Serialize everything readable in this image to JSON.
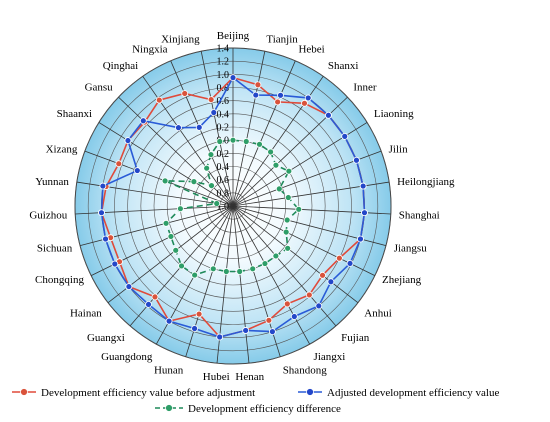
{
  "chart_data": {
    "type": "radar",
    "categories": [
      "Beijing",
      "Tianjin",
      "Hebei",
      "Shanxi",
      "Inner",
      "Liaoning",
      "Jilin",
      "Heilongjiang",
      "Shanghai",
      "Jiangsu",
      "Zhejiang",
      "Anhui",
      "Fujian",
      "Jiangxi",
      "Shandong",
      "Henan",
      "Hubei",
      "Hunan",
      "Guangdong",
      "Guangxi",
      "Hainan",
      "Chongqing",
      "Sichuan",
      "Guizhou",
      "Yunnan",
      "Xizang",
      "Shaanxi",
      "Gansu",
      "Qinghai",
      "Ningxia",
      "Xinjiang"
    ],
    "ticks": [
      "1.4",
      "1.2",
      "1.0",
      "0.8",
      "0.6",
      "0.4",
      "0.2",
      "0.0",
      "0.2",
      "0.4",
      "0.6",
      "0.8",
      "1.0"
    ],
    "rlim": [
      -1.0,
      1.4
    ],
    "grid": true,
    "legend_position": "bottom",
    "series": [
      {
        "name": "Development efficiency value before adjustment",
        "color": "#e04a3a",
        "marker_color": "#d9533b",
        "style": "solid",
        "values": [
          0.95,
          0.88,
          0.72,
          0.9,
          1.0,
          1.0,
          1.0,
          1.0,
          1.0,
          1.0,
          0.8,
          0.72,
          0.78,
          0.7,
          0.82,
          0.9,
          1.0,
          0.72,
          1.0,
          0.82,
          1.0,
          0.92,
          0.92,
          1.0,
          0.95,
          0.85,
          0.88,
          0.85,
          0.96,
          0.86,
          0.65
        ]
      },
      {
        "name": "Adjusted development efficiency value",
        "color": "#2a5bd7",
        "marker_color": "#2347c9",
        "style": "solid",
        "values": [
          0.95,
          0.72,
          0.83,
          1.0,
          1.0,
          1.0,
          1.0,
          1.0,
          1.0,
          1.0,
          0.98,
          0.88,
          1.0,
          0.92,
          1.0,
          0.9,
          1.0,
          0.95,
          1.0,
          0.97,
          1.0,
          1.0,
          1.0,
          1.0,
          1.0,
          0.55,
          0.88,
          0.88,
          0.45,
          0.3,
          0.45
        ]
      },
      {
        "name": "Development efficiency difference",
        "color": "#1f8a5a",
        "marker_color": "#2e9e68",
        "style": "dashed",
        "values": [
          0.0,
          0.0,
          0.02,
          0.0,
          -0.1,
          0.0,
          -0.25,
          -0.15,
          0.0,
          -0.15,
          -0.1,
          0.05,
          0.0,
          0.0,
          0.0,
          0.0,
          0.0,
          0.0,
          0.2,
          0.2,
          0.1,
          0.05,
          0.05,
          -0.2,
          -0.75,
          0.1,
          -0.3,
          -0.55,
          -0.3,
          -0.15,
          0.0
        ]
      }
    ]
  }
}
